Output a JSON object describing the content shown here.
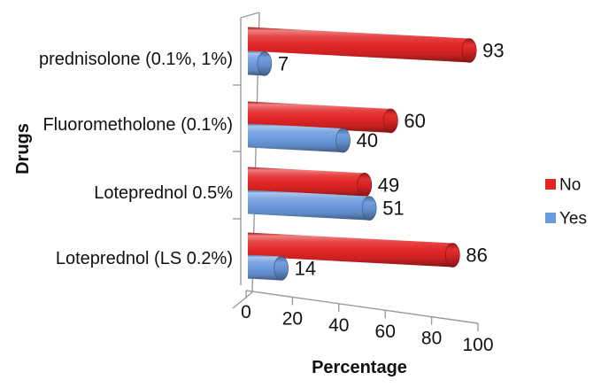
{
  "chart_data": {
    "type": "bar",
    "orientation": "horizontal",
    "style": "3d-cylinder",
    "title": "",
    "xlabel": "Percentage",
    "ylabel": "Drugs",
    "xlim": [
      0,
      100
    ],
    "x_ticks": [
      "0",
      "20",
      "40",
      "60",
      "80",
      "100"
    ],
    "grid": false,
    "legend_position": "right",
    "value_labels_shown": true,
    "categories": [
      "prednisolone (0.1%, 1%)",
      "Fluorometholone (0.1%)",
      "Loteprednol 0.5%",
      "Loteprednol (LS 0.2%)"
    ],
    "series": [
      {
        "name": "No",
        "color": "#e32526",
        "values": [
          93,
          60,
          49,
          86
        ]
      },
      {
        "name": "Yes",
        "color": "#6c9ade",
        "values": [
          7,
          40,
          51,
          14
        ]
      }
    ],
    "colors": {
      "background": "#ffffff",
      "axis": "#9b9b9b",
      "text": "#111111"
    }
  }
}
